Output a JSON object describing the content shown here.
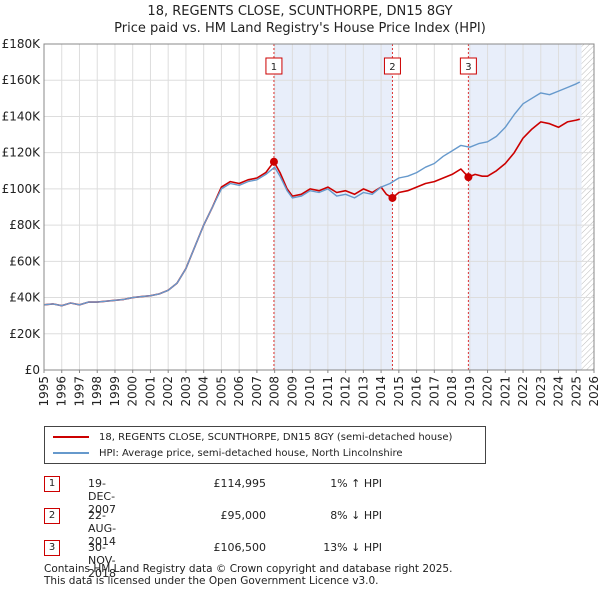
{
  "title": "18, REGENTS CLOSE, SCUNTHORPE, DN15 8GY",
  "subtitle": "Price paid vs. HM Land Registry's House Price Index (HPI)",
  "chart_data": {
    "type": "line",
    "xlim": [
      1995,
      2026
    ],
    "ylim": [
      0,
      180000
    ],
    "y_ticks": [
      0,
      20000,
      40000,
      60000,
      80000,
      100000,
      120000,
      140000,
      160000,
      180000
    ],
    "y_tick_labels": [
      "£0",
      "£20K",
      "£40K",
      "£60K",
      "£80K",
      "£100K",
      "£120K",
      "£140K",
      "£160K",
      "£180K"
    ],
    "x_tick_labels": [
      "1995",
      "1996",
      "1997",
      "1998",
      "1999",
      "2000",
      "2001",
      "2002",
      "2003",
      "2004",
      "2005",
      "2006",
      "2007",
      "2008",
      "2009",
      "2010",
      "2011",
      "2012",
      "2013",
      "2014",
      "2015",
      "2016",
      "2017",
      "2018",
      "2019",
      "2020",
      "2021",
      "2022",
      "2023",
      "2024",
      "2025",
      "2026"
    ],
    "shaded_regions": [
      [
        2007.96,
        2014.64
      ],
      [
        2018.92,
        2025.3
      ]
    ],
    "hatched_from": 2025.3,
    "series": [
      {
        "name": "18, REGENTS CLOSE, SCUNTHORPE, DN15 8GY (semi-detached house)",
        "color": "#cc0000",
        "x": [
          1995.0,
          1995.5,
          1996.0,
          1996.5,
          1997.0,
          1997.5,
          1998.0,
          1998.5,
          1999.0,
          1999.5,
          2000.0,
          2000.5,
          2001.0,
          2001.5,
          2002.0,
          2002.5,
          2003.0,
          2003.5,
          2004.0,
          2004.5,
          2005.0,
          2005.5,
          2006.0,
          2006.5,
          2007.0,
          2007.5,
          2007.96,
          2008.3,
          2008.7,
          2009.0,
          2009.5,
          2010.0,
          2010.5,
          2011.0,
          2011.5,
          2012.0,
          2012.5,
          2013.0,
          2013.5,
          2014.0,
          2014.3,
          2014.64,
          2015.0,
          2015.5,
          2016.0,
          2016.5,
          2017.0,
          2017.5,
          2018.0,
          2018.5,
          2018.92,
          2019.3,
          2019.7,
          2020.0,
          2020.5,
          2021.0,
          2021.5,
          2022.0,
          2022.5,
          2023.0,
          2023.5,
          2024.0,
          2024.5,
          2025.0,
          2025.2
        ],
        "y": [
          36000,
          36500,
          35500,
          37000,
          36000,
          37500,
          37500,
          38000,
          38500,
          39000,
          40000,
          40500,
          41000,
          42000,
          44000,
          48000,
          56000,
          68000,
          80000,
          90000,
          101000,
          104000,
          103000,
          105000,
          106000,
          109000,
          114995,
          109000,
          100000,
          96000,
          97000,
          100000,
          99000,
          101000,
          98000,
          99000,
          97000,
          100000,
          98000,
          101000,
          97000,
          95000,
          98000,
          99000,
          101000,
          103000,
          104000,
          106000,
          108000,
          111000,
          106500,
          108000,
          107000,
          107000,
          110000,
          114000,
          120000,
          128000,
          133000,
          137000,
          136000,
          134000,
          137000,
          138000,
          138500
        ]
      },
      {
        "name": "HPI: Average price, semi-detached house, North Lincolnshire",
        "color": "#6699cc",
        "x": [
          1995.0,
          1995.5,
          1996.0,
          1996.5,
          1997.0,
          1997.5,
          1998.0,
          1998.5,
          1999.0,
          1999.5,
          2000.0,
          2000.5,
          2001.0,
          2001.5,
          2002.0,
          2002.5,
          2003.0,
          2003.5,
          2004.0,
          2004.5,
          2005.0,
          2005.5,
          2006.0,
          2006.5,
          2007.0,
          2007.5,
          2008.0,
          2008.3,
          2008.7,
          2009.0,
          2009.5,
          2010.0,
          2010.5,
          2011.0,
          2011.5,
          2012.0,
          2012.5,
          2013.0,
          2013.5,
          2014.0,
          2014.5,
          2015.0,
          2015.5,
          2016.0,
          2016.5,
          2017.0,
          2017.5,
          2018.0,
          2018.5,
          2019.0,
          2019.5,
          2020.0,
          2020.5,
          2021.0,
          2021.5,
          2022.0,
          2022.5,
          2023.0,
          2023.5,
          2024.0,
          2024.5,
          2025.0,
          2025.2
        ],
        "y": [
          36000,
          36500,
          35500,
          37000,
          36000,
          37500,
          37500,
          38000,
          38500,
          39000,
          40000,
          40500,
          41000,
          42000,
          44000,
          48000,
          56000,
          68000,
          80000,
          90000,
          100000,
          103000,
          102000,
          104000,
          105000,
          108000,
          112000,
          107000,
          99000,
          95000,
          96000,
          99000,
          98000,
          100000,
          96000,
          97000,
          95000,
          98000,
          97000,
          101000,
          103000,
          106000,
          107000,
          109000,
          112000,
          114000,
          118000,
          121000,
          124000,
          123000,
          125000,
          126000,
          129000,
          134000,
          141000,
          147000,
          150000,
          153000,
          152000,
          154000,
          156000,
          158000,
          159000
        ]
      }
    ],
    "sales": [
      {
        "label": "1",
        "x": 2007.96,
        "y": 114995
      },
      {
        "label": "2",
        "x": 2014.64,
        "y": 95000
      },
      {
        "label": "3",
        "x": 2018.92,
        "y": 106500
      }
    ]
  },
  "legend": {
    "property": "18, REGENTS CLOSE, SCUNTHORPE, DN15 8GY (semi-detached house)",
    "hpi": "HPI: Average price, semi-detached house, North Lincolnshire",
    "property_color": "#cc0000",
    "hpi_color": "#6699cc"
  },
  "sales_table": [
    {
      "num": "1",
      "date": "19-DEC-2007",
      "price": "£114,995",
      "hpi": "1% ↑ HPI"
    },
    {
      "num": "2",
      "date": "22-AUG-2014",
      "price": "£95,000",
      "hpi": "8% ↓ HPI"
    },
    {
      "num": "3",
      "date": "30-NOV-2018",
      "price": "£106,500",
      "hpi": "13% ↓ HPI"
    }
  ],
  "footer": {
    "line1": "Contains HM Land Registry data © Crown copyright and database right 2025.",
    "line2": "This data is licensed under the Open Government Licence v3.0."
  }
}
